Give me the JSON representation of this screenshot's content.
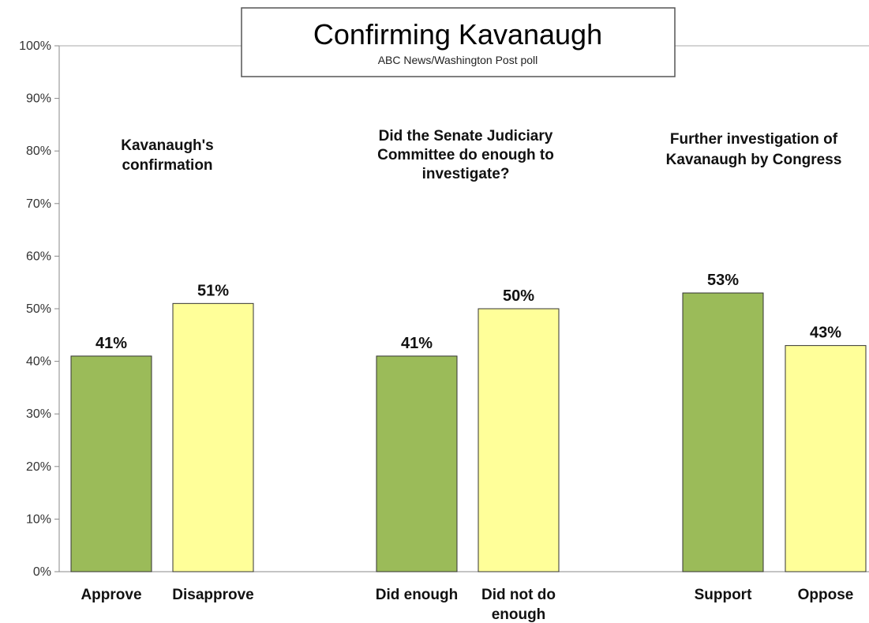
{
  "chart_data": {
    "type": "bar",
    "title": "Confirming Kavanaugh",
    "subtitle": "ABC News/Washington  Post poll",
    "ylim": [
      0,
      100
    ],
    "yticks": [
      "0%",
      "10%",
      "20%",
      "30%",
      "40%",
      "50%",
      "60%",
      "70%",
      "80%",
      "90%",
      "100%"
    ],
    "grid": false,
    "groups": [
      {
        "heading": [
          "Kavanaugh's",
          "confirmation"
        ],
        "bars": [
          {
            "category": [
              "Approve"
            ],
            "value": 41,
            "label": "41%",
            "color": "#9bbb59"
          },
          {
            "category": [
              "Disapprove"
            ],
            "value": 51,
            "label": "51%",
            "color": "#ffff99"
          }
        ]
      },
      {
        "heading": [
          "Did the Senate Judiciary",
          "Committee do enough to",
          "investigate?"
        ],
        "bars": [
          {
            "category": [
              "Did enough"
            ],
            "value": 41,
            "label": "41%",
            "color": "#9bbb59"
          },
          {
            "category": [
              "Did not do",
              "enough"
            ],
            "value": 50,
            "label": "50%",
            "color": "#ffff99"
          }
        ]
      },
      {
        "heading": [
          "Further investigation of",
          "Kavanaugh by Congress"
        ],
        "bars": [
          {
            "category": [
              "Support"
            ],
            "value": 53,
            "label": "53%",
            "color": "#9bbb59"
          },
          {
            "category": [
              "Oppose"
            ],
            "value": 43,
            "label": "43%",
            "color": "#ffff99"
          }
        ]
      }
    ]
  }
}
